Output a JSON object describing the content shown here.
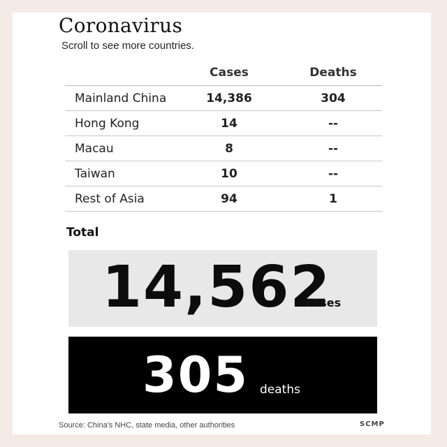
{
  "title": "Coronavirus",
  "subtitle": "Scroll to see more countries.",
  "table": {
    "headers": {
      "cases": "Cases",
      "deaths": "Deaths"
    },
    "rows": [
      {
        "country": "Mainland China",
        "cases": "14,386",
        "deaths": "304"
      },
      {
        "country": "Hong Kong",
        "cases": "14",
        "deaths": "--"
      },
      {
        "country": "Macau",
        "cases": "8",
        "deaths": "--"
      },
      {
        "country": "Taiwan",
        "cases": "10",
        "deaths": "--"
      },
      {
        "country": "Rest of Asia",
        "cases": "94",
        "deaths": "1"
      }
    ]
  },
  "total": {
    "label": "Total",
    "cases_value": "14,562",
    "cases_unit": "cases",
    "deaths_value": "305",
    "deaths_unit": "deaths"
  },
  "footer": {
    "source": "Source: China's NHC, state media, other authorities",
    "brand": "SCMP"
  },
  "colors": {
    "background": "#f4ebe6",
    "card": "#ffffff",
    "cases_box": "#e8e8e8",
    "deaths_box": "#000000"
  }
}
